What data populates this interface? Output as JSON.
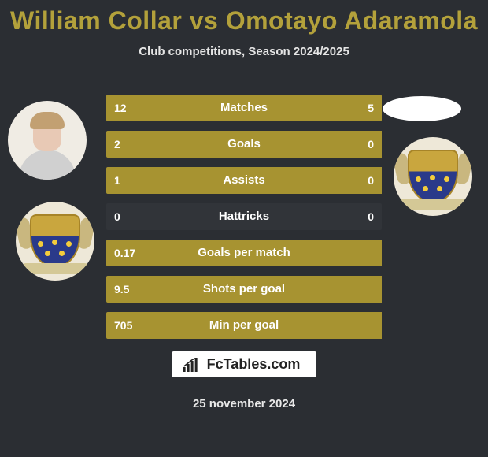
{
  "header": {
    "title": "William Collar vs Omotayo Adaramola",
    "title_color": "#b3a13b",
    "subtitle": "Club competitions, Season 2024/2025"
  },
  "stats": {
    "bar_color": "#a79331",
    "empty_color": "rgba(255,255,255,0.03)",
    "rows": [
      {
        "label": "Matches",
        "left_val": "12",
        "right_val": "5",
        "left_pct": 70.59,
        "right_pct": 29.41
      },
      {
        "label": "Goals",
        "left_val": "2",
        "right_val": "0",
        "left_pct": 100,
        "right_pct": 0
      },
      {
        "label": "Assists",
        "left_val": "1",
        "right_val": "0",
        "left_pct": 100,
        "right_pct": 0
      },
      {
        "label": "Hattricks",
        "left_val": "0",
        "right_val": "0",
        "left_pct": 0,
        "right_pct": 0
      },
      {
        "label": "Goals per match",
        "left_val": "0.17",
        "right_val": "",
        "left_pct": 100,
        "right_pct": 0
      },
      {
        "label": "Shots per goal",
        "left_val": "9.5",
        "right_val": "",
        "left_pct": 100,
        "right_pct": 0
      },
      {
        "label": "Min per goal",
        "left_val": "705",
        "right_val": "",
        "left_pct": 100,
        "right_pct": 0
      }
    ]
  },
  "footer": {
    "brand": "FcTables.com",
    "date": "25 november 2024"
  },
  "colors": {
    "background": "#2b2e33",
    "text": "#ffffff"
  }
}
